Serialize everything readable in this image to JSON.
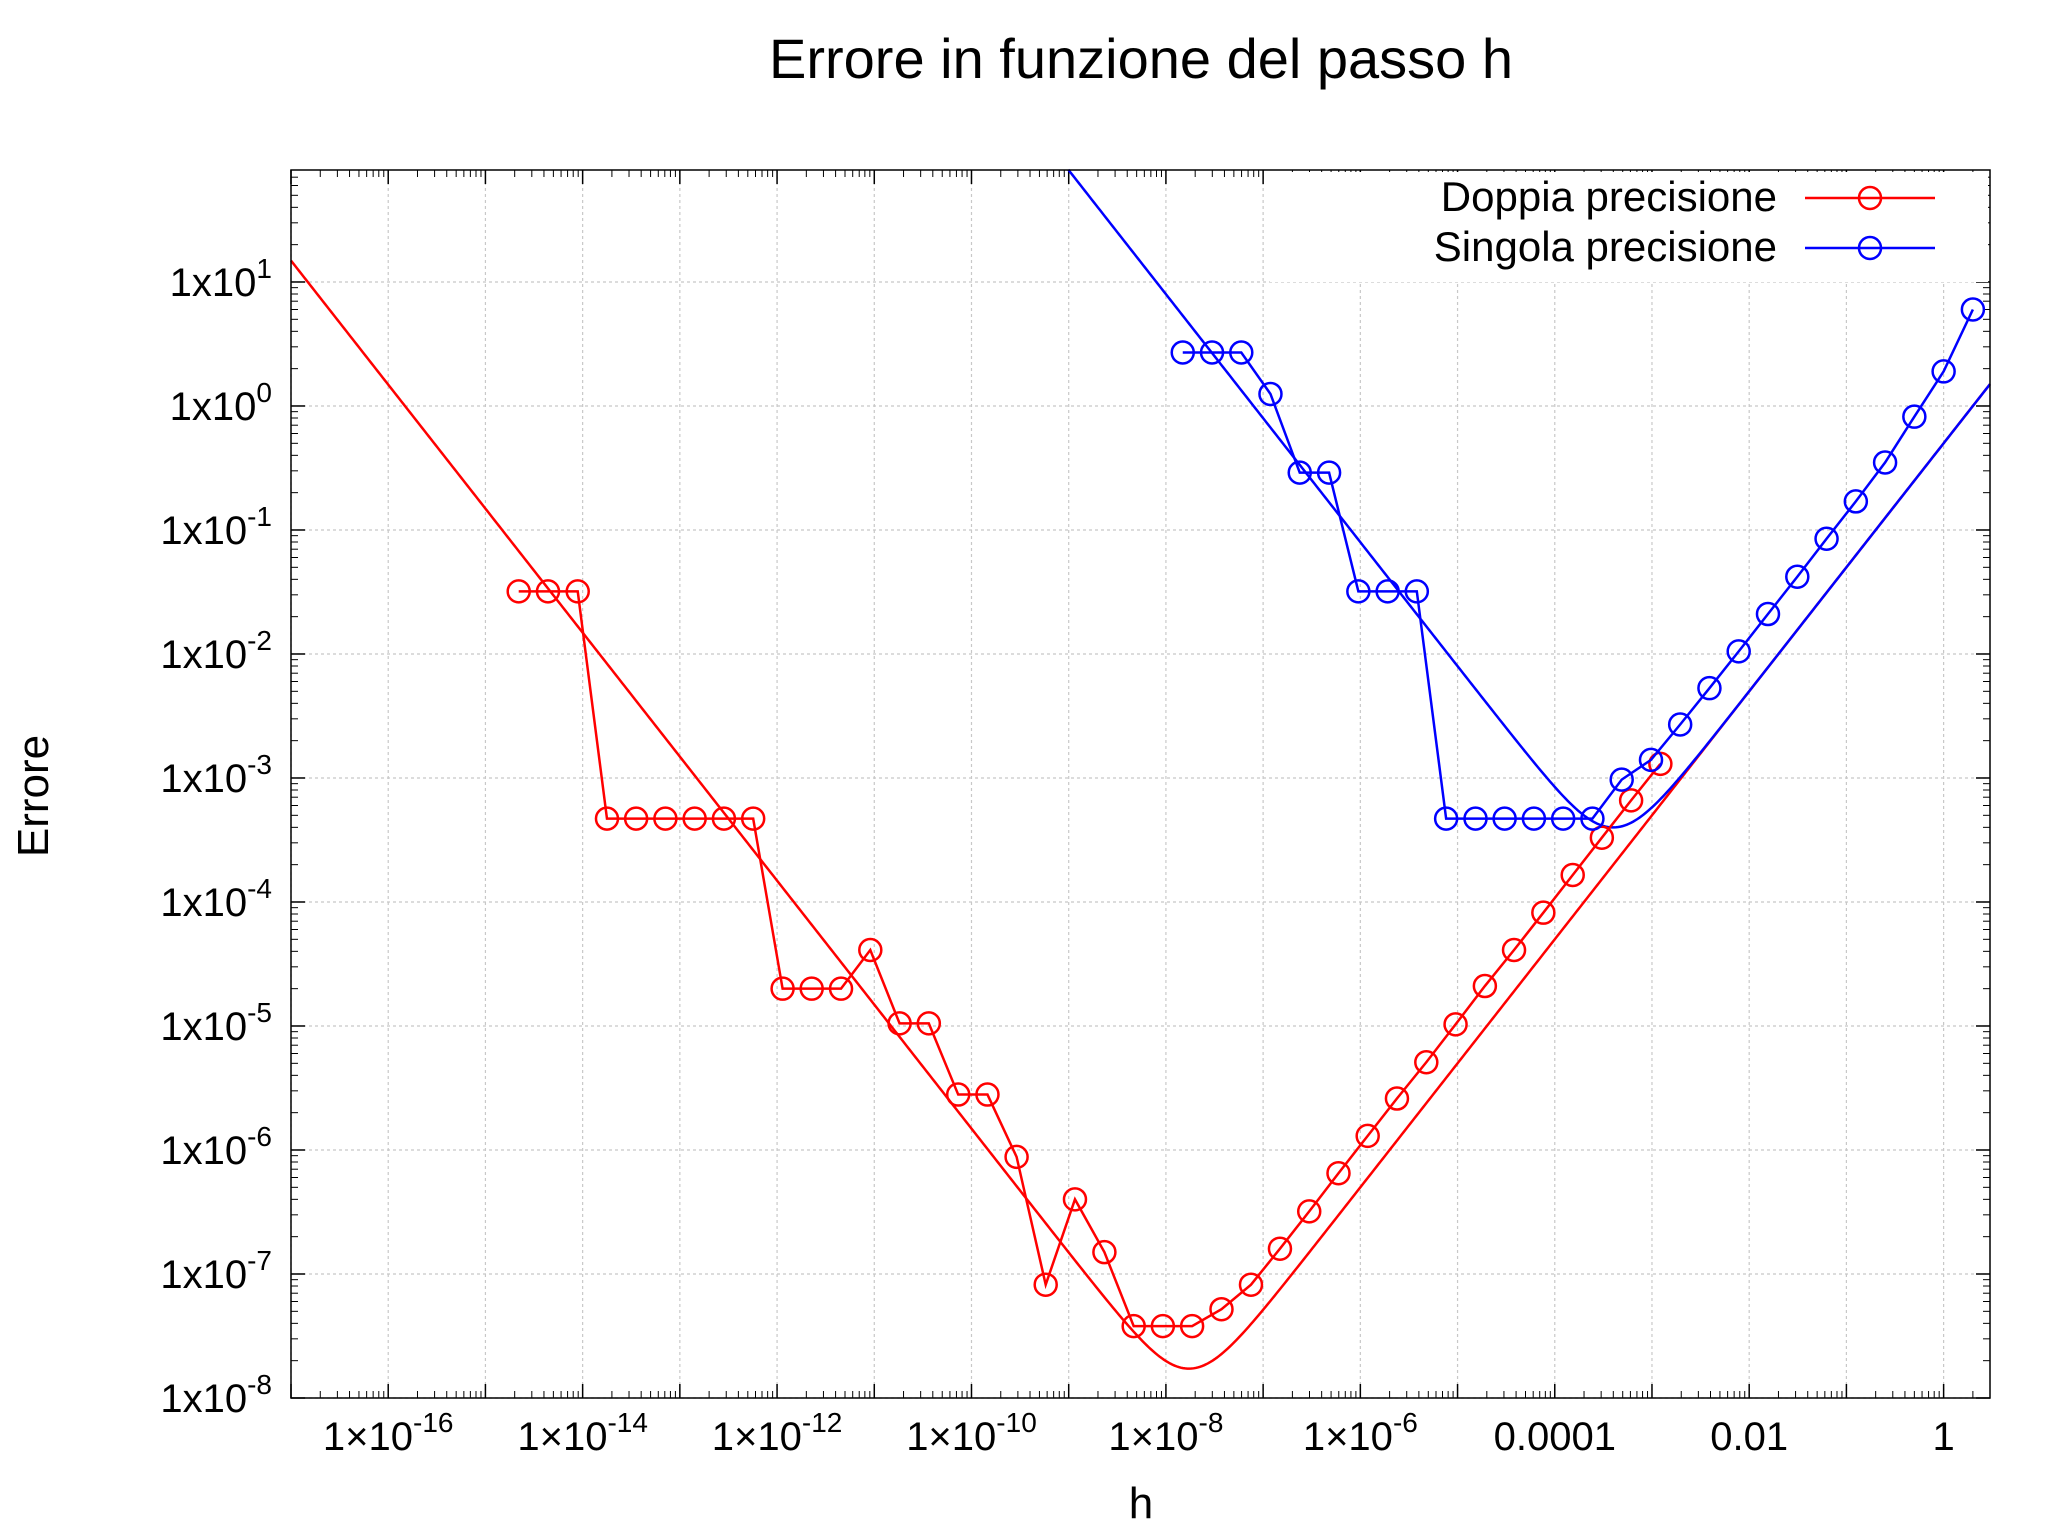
{
  "chart_data": {
    "type": "line",
    "title": "Errore in funzione del passo h",
    "xlabel": "h",
    "ylabel": "Errore",
    "x_scale": "log",
    "y_scale": "log",
    "xlim": [
      1e-17,
      3
    ],
    "ylim": [
      1e-08,
      80
    ],
    "grid": true,
    "legend_position": "top-right",
    "x_ticks": [
      {
        "value": 1e-16,
        "base": "1×10",
        "exp": "-16"
      },
      {
        "value": 1e-14,
        "base": "1×10",
        "exp": "-14"
      },
      {
        "value": 1e-12,
        "base": "1×10",
        "exp": "-12"
      },
      {
        "value": 1e-10,
        "base": "1×10",
        "exp": "-10"
      },
      {
        "value": 1e-08,
        "base": "1×10",
        "exp": "-8"
      },
      {
        "value": 1e-06,
        "base": "1×10",
        "exp": "-6"
      },
      {
        "value": 0.0001,
        "base": "0.0001",
        "exp": ""
      },
      {
        "value": 0.01,
        "base": "0.01",
        "exp": ""
      },
      {
        "value": 1,
        "base": "1",
        "exp": ""
      }
    ],
    "y_ticks": [
      {
        "value": 10,
        "base": "1x10",
        "exp": "1"
      },
      {
        "value": 1,
        "base": "1x10",
        "exp": "0"
      },
      {
        "value": 0.1,
        "base": "1x10",
        "exp": "-1"
      },
      {
        "value": 0.01,
        "base": "1x10",
        "exp": "-2"
      },
      {
        "value": 0.001,
        "base": "1x10",
        "exp": "-3"
      },
      {
        "value": 0.0001,
        "base": "1x10",
        "exp": "-4"
      },
      {
        "value": 1e-05,
        "base": "1x10",
        "exp": "-5"
      },
      {
        "value": 1e-06,
        "base": "1x10",
        "exp": "-6"
      },
      {
        "value": 1e-07,
        "base": "1x10",
        "exp": "-7"
      },
      {
        "value": 1e-08,
        "base": "1x10",
        "exp": "-8"
      }
    ],
    "series": [
      {
        "name": "Doppia precisione",
        "color": "#ff0000",
        "marker": "circle",
        "points": [
          [
            2.2e-15,
            0.032
          ],
          [
            4.4e-15,
            0.032
          ],
          [
            8.9e-15,
            0.032
          ],
          [
            1.78e-14,
            0.00047
          ],
          [
            3.55e-14,
            0.00047
          ],
          [
            7.1e-14,
            0.00047
          ],
          [
            1.42e-13,
            0.00047
          ],
          [
            2.84e-13,
            0.00047
          ],
          [
            5.68e-13,
            0.00047
          ],
          [
            1.14e-12,
            2e-05
          ],
          [
            2.27e-12,
            2e-05
          ],
          [
            4.55e-12,
            2e-05
          ],
          [
            9.1e-12,
            4.1e-05
          ],
          [
            1.82e-11,
            1.05e-05
          ],
          [
            3.64e-11,
            1.05e-05
          ],
          [
            7.3e-11,
            2.8e-06
          ],
          [
            1.46e-10,
            2.8e-06
          ],
          [
            2.91e-10,
            8.8e-07
          ],
          [
            5.8e-10,
            8.2e-08
          ],
          [
            1.16e-09,
            4e-07
          ],
          [
            2.33e-09,
            1.5e-07
          ],
          [
            4.66e-09,
            3.8e-08
          ],
          [
            9.3e-09,
            3.8e-08
          ],
          [
            1.86e-08,
            3.8e-08
          ],
          [
            3.73e-08,
            5.2e-08
          ],
          [
            7.5e-08,
            8.2e-08
          ],
          [
            1.49e-07,
            1.6e-07
          ],
          [
            2.98e-07,
            3.2e-07
          ],
          [
            5.96e-07,
            6.5e-07
          ],
          [
            1.19e-06,
            1.3e-06
          ],
          [
            2.38e-06,
            2.6e-06
          ],
          [
            4.77e-06,
            5.1e-06
          ],
          [
            9.54e-06,
            1.03e-05
          ],
          [
            1.91e-05,
            2.1e-05
          ],
          [
            3.81e-05,
            4.1e-05
          ],
          [
            7.63e-05,
            8.2e-05
          ],
          [
            0.000153,
            0.000165
          ],
          [
            0.000305,
            0.00033
          ],
          [
            0.00061,
            0.00066
          ],
          [
            0.00122,
            0.0013
          ]
        ]
      },
      {
        "name": "Singola precisione",
        "color": "#0000ff",
        "marker": "circle",
        "points": [
          [
            1.49e-08,
            2.7
          ],
          [
            2.98e-08,
            2.7
          ],
          [
            5.96e-08,
            2.7
          ],
          [
            1.19e-07,
            1.25
          ],
          [
            2.38e-07,
            0.29
          ],
          [
            4.77e-07,
            0.29
          ],
          [
            9.54e-07,
            0.032
          ],
          [
            1.91e-06,
            0.032
          ],
          [
            3.81e-06,
            0.032
          ],
          [
            7.63e-06,
            0.00047
          ],
          [
            1.53e-05,
            0.00047
          ],
          [
            3.05e-05,
            0.00047
          ],
          [
            6.1e-05,
            0.00047
          ],
          [
            0.000122,
            0.00047
          ],
          [
            0.000244,
            0.00047
          ],
          [
            0.000488,
            0.00097
          ],
          [
            0.000977,
            0.0014
          ],
          [
            0.00195,
            0.0027
          ],
          [
            0.0039,
            0.0053
          ],
          [
            0.0078,
            0.0105
          ],
          [
            0.0156,
            0.021
          ],
          [
            0.03125,
            0.042
          ],
          [
            0.0625,
            0.085
          ],
          [
            0.125,
            0.17
          ],
          [
            0.25,
            0.35
          ],
          [
            0.5,
            0.82
          ],
          [
            1,
            1.9
          ],
          [
            2,
            6
          ]
        ]
      }
    ],
    "theory_curves": [
      {
        "series": "Doppia precisione",
        "eps": 2.22e-16,
        "coef_a": 0.5,
        "coef_b": 0.67
      },
      {
        "series": "Singola precisione",
        "eps": 1.19e-07,
        "coef_a": 0.5,
        "coef_b": 0.67
      }
    ]
  }
}
